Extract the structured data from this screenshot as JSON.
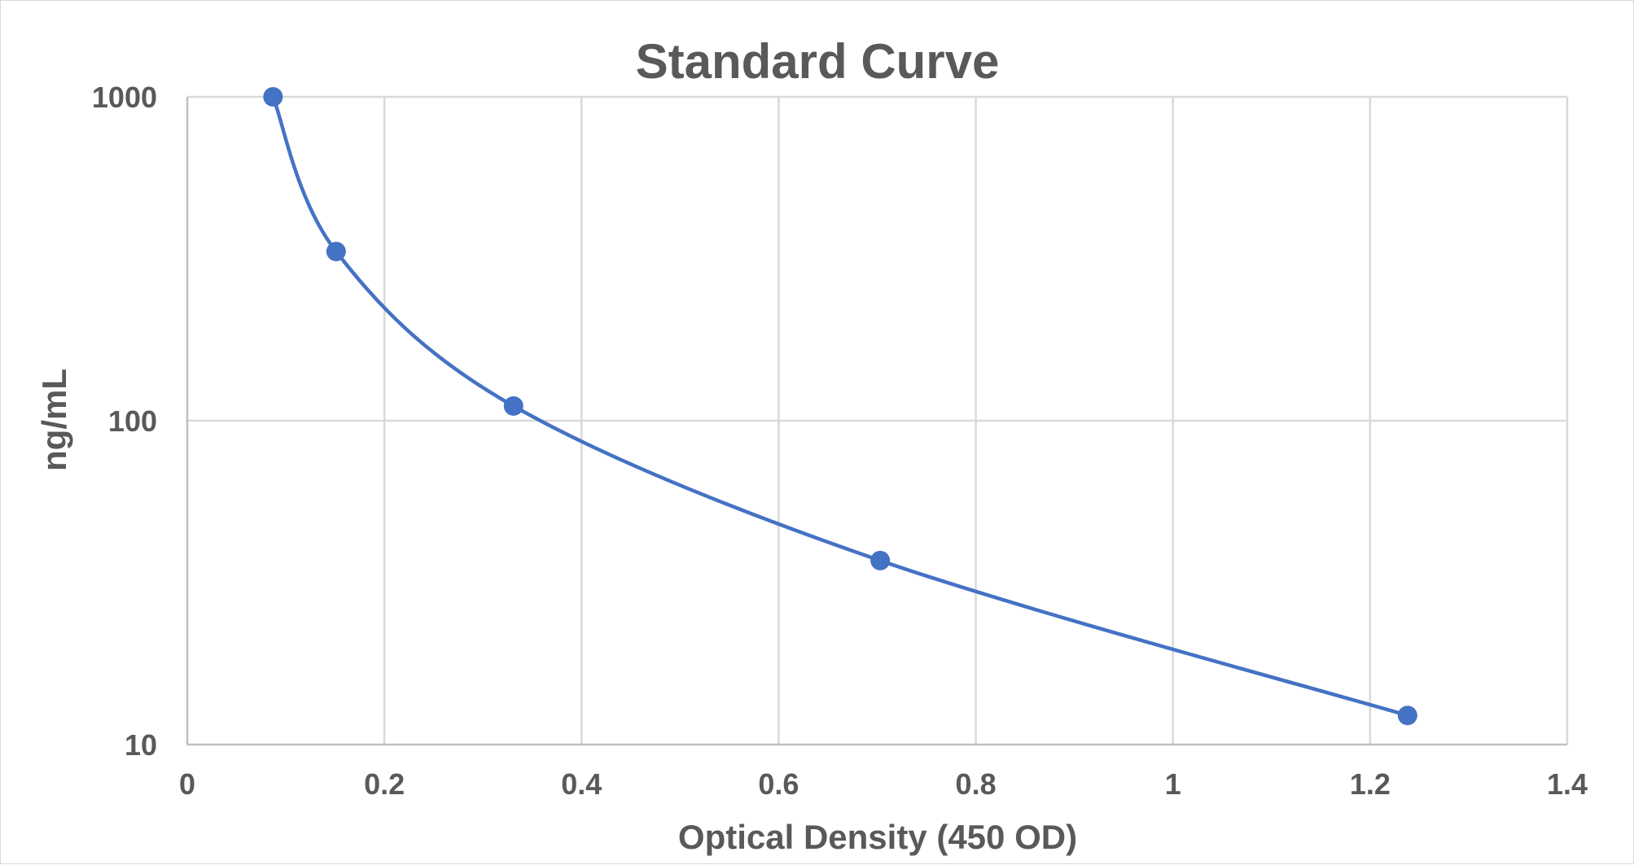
{
  "chart_data": {
    "type": "scatter",
    "title": "Standard Curve",
    "xlabel": "Optical Density (450 OD)",
    "ylabel": "ng/mL",
    "xlim": [
      0,
      1.4
    ],
    "ylim": [
      10,
      1000
    ],
    "y_scale": "log",
    "x_ticks": [
      "0",
      "0.2",
      "0.4",
      "0.6",
      "0.8",
      "1",
      "1.2",
      "1.4"
    ],
    "y_ticks": [
      "1000",
      "100",
      "10"
    ],
    "grid": true,
    "legend": "none",
    "line": "smooth",
    "color": "#4472c4",
    "series": [
      {
        "x": [
          0.087,
          0.151,
          0.331,
          0.703,
          1.238
        ],
        "y": [
          1000,
          333,
          111,
          37,
          12.3
        ]
      }
    ]
  }
}
